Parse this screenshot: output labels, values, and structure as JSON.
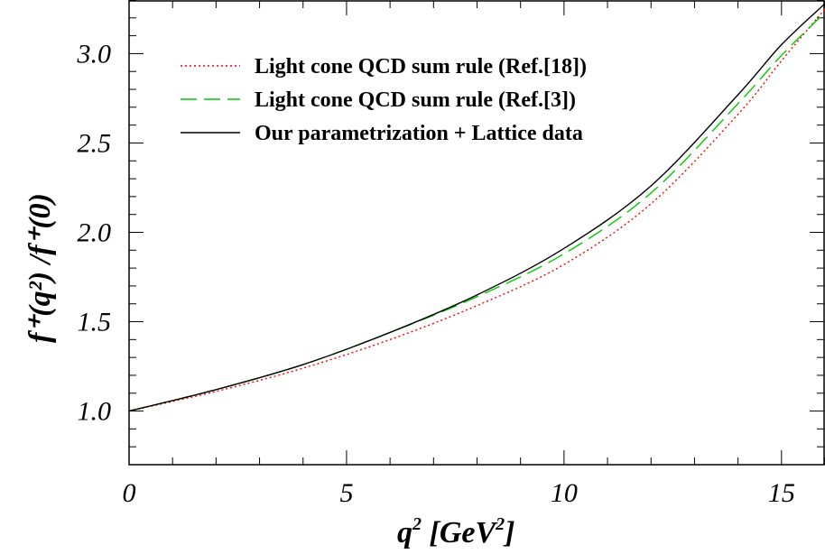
{
  "chart_data": {
    "type": "line",
    "title": "",
    "xlabel_main": "q",
    "xlabel_sup": "2",
    "xlabel_rest": " [GeV",
    "xlabel_unit_sup": "2",
    "xlabel_close": "]",
    "ylabel": "f⁺(q²) /f⁺(0)",
    "xlim": [
      0,
      16
    ],
    "ylim": [
      0.7,
      3.3
    ],
    "x_ticks": [
      0,
      5,
      10,
      15
    ],
    "y_ticks": [
      1.0,
      1.5,
      2.0,
      2.5,
      3.0
    ],
    "x_tick_labels": [
      "0",
      "5",
      "10",
      "15"
    ],
    "y_tick_labels": [
      "1.0",
      "1.5",
      "2.0",
      "2.5",
      "3.0"
    ],
    "grid": false,
    "legend_position": "top-left",
    "x": [
      0,
      2,
      4,
      6,
      8,
      10,
      12,
      14,
      15,
      16
    ],
    "series": [
      {
        "name": "Light cone QCD sum rule (Ref.[18])",
        "color": "#ff0000",
        "style": "dotted",
        "values": [
          1.0,
          1.11,
          1.24,
          1.4,
          1.59,
          1.82,
          2.16,
          2.66,
          2.96,
          3.25
        ]
      },
      {
        "name": "Light cone QCD sum rule (Ref.[3])",
        "color": "#00cc00",
        "style": "dashed",
        "values": [
          1.0,
          1.12,
          1.26,
          1.44,
          1.64,
          1.88,
          2.22,
          2.72,
          2.99,
          3.23
        ]
      },
      {
        "name": "Our parametrization + Lattice data",
        "color": "#000000",
        "style": "solid",
        "values": [
          1.0,
          1.12,
          1.26,
          1.44,
          1.65,
          1.91,
          2.26,
          2.77,
          3.05,
          3.28
        ]
      }
    ]
  }
}
